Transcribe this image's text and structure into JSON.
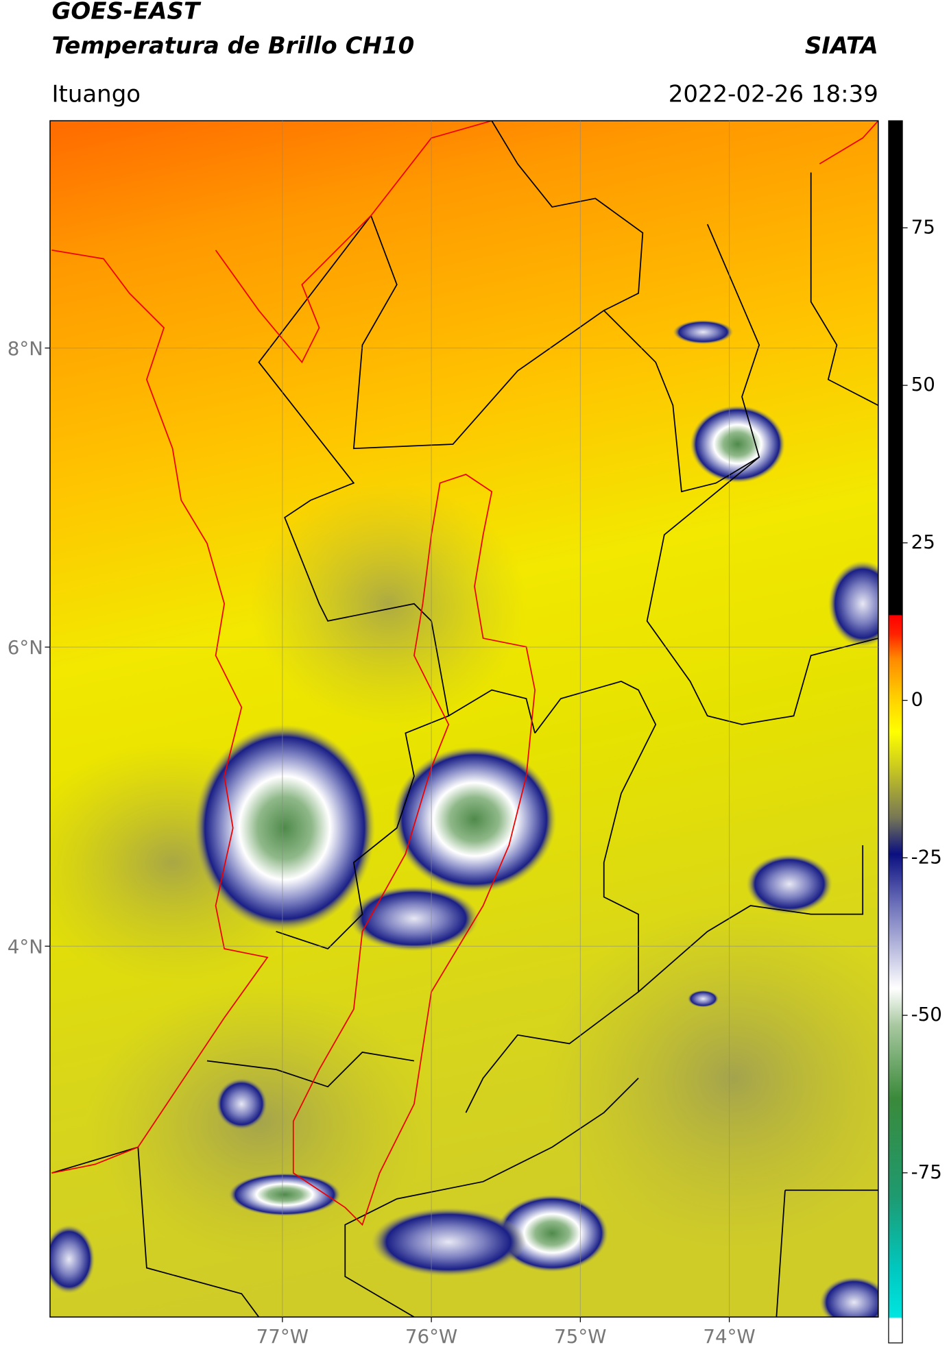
{
  "header": {
    "satellite": "GOES-EAST",
    "product": "Temperatura de Brillo CH10",
    "agency": "SIATA",
    "region": "Ituango",
    "timestamp": "2022-02-26 18:39"
  },
  "map": {
    "lonlim": [
      -78.56,
      -73.0
    ],
    "latlim": [
      1.52,
      9.52
    ],
    "lon_ticks": [
      {
        "value": -77,
        "label": "77°W"
      },
      {
        "value": -76,
        "label": "76°W"
      },
      {
        "value": -75,
        "label": "75°W"
      },
      {
        "value": -74,
        "label": "74°W"
      }
    ],
    "lat_ticks": [
      {
        "value": 8,
        "label": "8°N"
      },
      {
        "value": 6,
        "label": "6°N"
      },
      {
        "value": 4,
        "label": "4°N"
      }
    ],
    "grid": true
  },
  "colorbar": {
    "lim": [
      -102,
      92
    ],
    "ticks": [
      75,
      50,
      25,
      0,
      -25,
      -50,
      -75
    ]
  }
}
